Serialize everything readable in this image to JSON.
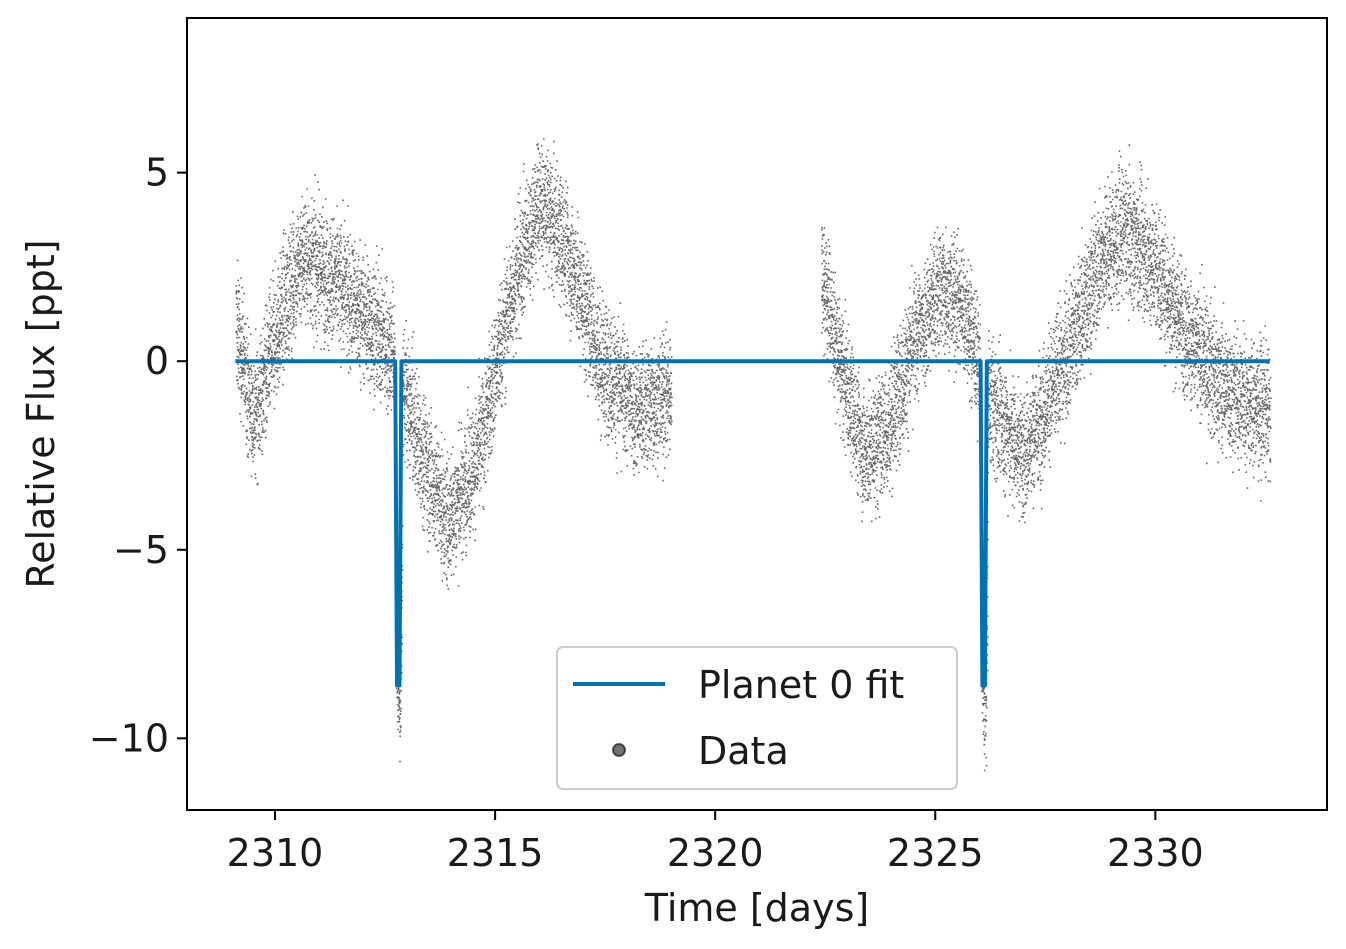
{
  "chart_data": {
    "type": "scatter",
    "title": "",
    "xlabel": "Time [days]",
    "ylabel": "Relative Flux [ppt]",
    "xlim": [
      2308.0,
      2333.9
    ],
    "ylim": [
      -11.9,
      9.1
    ],
    "xticks": [
      2310,
      2315,
      2320,
      2325,
      2330
    ],
    "yticks": [
      5,
      0,
      -5,
      -10
    ],
    "xtick_labels": [
      "2310",
      "2315",
      "2320",
      "2325",
      "2330"
    ],
    "ytick_labels": [
      "5",
      "0",
      "−5",
      "−10"
    ],
    "grid": false,
    "legend_position": "lower center",
    "colors": {
      "model": "#0072b2",
      "data": "#000000"
    },
    "series": [
      {
        "name": "Data",
        "kind": "points",
        "segments": [
          {
            "x_start": 2309.1,
            "x_end": 2319.0
          },
          {
            "x_start": 2322.4,
            "x_end": 2332.6
          }
        ],
        "trend_knots": {
          "x": [
            2309.1,
            2309.5,
            2310.2,
            2310.6,
            2311.5,
            2312.3,
            2312.7,
            2313.2,
            2313.9,
            2314.6,
            2315.4,
            2316.0,
            2316.6,
            2317.4,
            2318.2,
            2319.0,
            2322.4,
            2322.8,
            2323.4,
            2323.9,
            2324.5,
            2325.1,
            2325.6,
            2326.2,
            2327.0,
            2328.0,
            2328.8,
            2329.3,
            2330.0,
            2330.8,
            2331.6,
            2332.6
          ],
          "y": [
            1.0,
            -1.5,
            1.5,
            2.8,
            2.0,
            0.8,
            0.2,
            -2.0,
            -4.3,
            -2.5,
            2.0,
            4.3,
            3.0,
            0.0,
            -1.3,
            -0.8,
            2.5,
            0.0,
            -2.5,
            -1.8,
            0.5,
            2.0,
            1.5,
            -1.0,
            -2.5,
            0.3,
            2.8,
            3.5,
            2.5,
            0.5,
            -0.8,
            -1.3
          ]
        },
        "scatter_ppt": 1.4,
        "transit_dips": [
          {
            "x": 2312.8,
            "depth": -8.7
          },
          {
            "x": 2326.1,
            "depth": -8.7
          }
        ]
      },
      {
        "name": "Planet 0 fit",
        "kind": "line",
        "x_range": [
          2309.1,
          2332.6
        ],
        "baseline": 0.0,
        "transits": [
          {
            "t0": 2312.8,
            "depth": -8.6,
            "half_width": 0.07
          },
          {
            "t0": 2326.1,
            "depth": -8.6,
            "half_width": 0.07
          }
        ]
      }
    ]
  }
}
